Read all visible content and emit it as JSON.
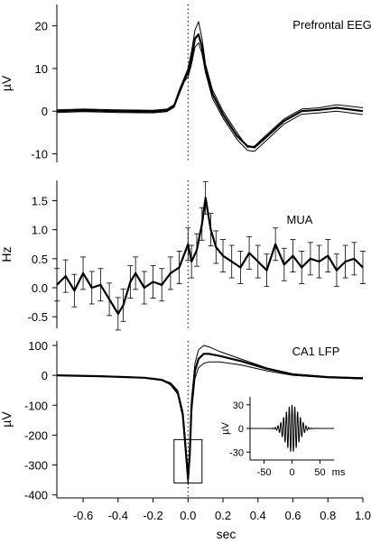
{
  "colors": {
    "line": "#000000",
    "background": "#ffffff"
  },
  "chart_data": [
    {
      "type": "line",
      "title": "Prefrontal EEG",
      "ylabel": "µV",
      "xlim": [
        -0.75,
        1.0
      ],
      "ylim": [
        -12,
        25
      ],
      "yticks": [
        "20",
        "10",
        "0",
        "-10"
      ],
      "ytick_values": [
        20,
        10,
        0,
        -10
      ],
      "grid": false,
      "reference_line_x": 0,
      "series": [
        {
          "name": "",
          "role": "upper",
          "x": [
            -0.75,
            -0.6,
            -0.4,
            -0.2,
            -0.12,
            -0.08,
            -0.05,
            -0.02,
            0.0,
            0.02,
            0.04,
            0.06,
            0.08,
            0.1,
            0.14,
            0.2,
            0.28,
            0.34,
            0.38,
            0.45,
            0.55,
            0.65,
            0.75,
            0.85,
            1.0
          ],
          "y": [
            0.3,
            0.5,
            0.3,
            0.2,
            0.5,
            1.5,
            5,
            8,
            10,
            14,
            19,
            21,
            17,
            11,
            5,
            0,
            -5,
            -8.5,
            -8.2,
            -5.5,
            -1.8,
            0.5,
            0.8,
            1.5,
            0.8
          ]
        },
        {
          "name": "",
          "role": "mean",
          "x": [
            -0.75,
            -0.6,
            -0.4,
            -0.2,
            -0.12,
            -0.08,
            -0.05,
            -0.02,
            0.0,
            0.02,
            0.04,
            0.06,
            0.08,
            0.1,
            0.14,
            0.2,
            0.28,
            0.34,
            0.38,
            0.45,
            0.55,
            0.65,
            0.75,
            0.85,
            1.0
          ],
          "y": [
            0,
            0.2,
            0,
            -0.1,
            0.2,
            1.2,
            4.5,
            7.5,
            9,
            12.5,
            17,
            18,
            15,
            10,
            4,
            -0.8,
            -5.8,
            -8.2,
            -8.5,
            -6,
            -2.3,
            0,
            0.3,
            0.8,
            0
          ]
        },
        {
          "name": "",
          "role": "lower",
          "x": [
            -0.75,
            -0.6,
            -0.4,
            -0.2,
            -0.12,
            -0.08,
            -0.05,
            -0.02,
            0.0,
            0.02,
            0.04,
            0.06,
            0.08,
            0.1,
            0.14,
            0.2,
            0.28,
            0.34,
            0.38,
            0.45,
            0.55,
            0.65,
            0.75,
            0.85,
            1.0
          ],
          "y": [
            -0.3,
            -0.1,
            -0.3,
            -0.4,
            -0.1,
            0.9,
            4,
            7,
            8,
            11,
            15,
            16,
            13.5,
            9,
            3,
            -1.6,
            -6.6,
            -9.2,
            -9.4,
            -6.8,
            -3,
            -0.7,
            -0.4,
            0,
            -0.8
          ]
        }
      ]
    },
    {
      "type": "line",
      "title": "MUA",
      "ylabel": "Hz",
      "xlim": [
        -0.75,
        1.0
      ],
      "ylim": [
        -0.7,
        1.85
      ],
      "yticks": [
        "1.5",
        "1.0",
        "0.5",
        "0.0",
        "-0.5"
      ],
      "ytick_values": [
        1.5,
        1.0,
        0.5,
        0.0,
        -0.5
      ],
      "grid": false,
      "reference_line_x": 0,
      "error_bar_halfwidth": 0.28,
      "series": [
        {
          "name": "",
          "role": "mean",
          "x": [
            -0.75,
            -0.7,
            -0.65,
            -0.6,
            -0.55,
            -0.5,
            -0.45,
            -0.4,
            -0.37,
            -0.33,
            -0.3,
            -0.25,
            -0.2,
            -0.15,
            -0.1,
            -0.05,
            0.0,
            0.02,
            0.05,
            0.08,
            0.1,
            0.13,
            0.16,
            0.2,
            0.25,
            0.3,
            0.35,
            0.4,
            0.45,
            0.5,
            0.55,
            0.6,
            0.65,
            0.7,
            0.75,
            0.8,
            0.85,
            0.9,
            0.95,
            1.0
          ],
          "y": [
            0.05,
            0.2,
            -0.05,
            0.25,
            0.0,
            0.05,
            -0.2,
            -0.45,
            -0.3,
            0.1,
            0.25,
            0.0,
            0.1,
            0.05,
            0.25,
            0.35,
            0.75,
            0.45,
            0.65,
            1.1,
            1.55,
            1.0,
            0.7,
            0.55,
            0.45,
            0.35,
            0.6,
            0.45,
            0.3,
            0.75,
            0.4,
            0.55,
            0.35,
            0.5,
            0.45,
            0.55,
            0.3,
            0.45,
            0.5,
            0.35
          ]
        }
      ]
    },
    {
      "type": "line",
      "title": "CA1 LFP",
      "ylabel": "µV",
      "xlabel": "sec",
      "xlim": [
        -0.75,
        1.0
      ],
      "ylim": [
        -410,
        115
      ],
      "yticks": [
        "100",
        "0",
        "-100",
        "-200",
        "-300",
        "-400"
      ],
      "ytick_values": [
        100,
        0,
        -100,
        -200,
        -300,
        -400
      ],
      "xticks": [
        "-0.6",
        "-0.4",
        "-0.2",
        "0.0",
        "0.2",
        "0.4",
        "0.6",
        "0.8",
        "1.0"
      ],
      "xtick_values": [
        -0.6,
        -0.4,
        -0.2,
        0.0,
        0.2,
        0.4,
        0.6,
        0.8,
        1.0
      ],
      "grid": false,
      "reference_line_x": 0,
      "highlight_box": {
        "x": [
          -0.08,
          0.08
        ],
        "y": [
          -360,
          -215
        ]
      },
      "series": [
        {
          "name": "",
          "role": "upper",
          "x": [
            -0.75,
            -0.5,
            -0.25,
            -0.15,
            -0.1,
            -0.06,
            -0.03,
            -0.01,
            0.0,
            0.01,
            0.02,
            0.04,
            0.06,
            0.09,
            0.12,
            0.18,
            0.3,
            0.45,
            0.6,
            0.8,
            1.0
          ],
          "y": [
            0,
            -3,
            -8,
            -15,
            -25,
            -50,
            -120,
            -250,
            -330,
            -250,
            -80,
            40,
            85,
            100,
            95,
            80,
            55,
            25,
            5,
            -5,
            -8
          ]
        },
        {
          "name": "",
          "role": "mean",
          "x": [
            -0.75,
            -0.5,
            -0.25,
            -0.15,
            -0.1,
            -0.06,
            -0.03,
            -0.01,
            0.0,
            0.01,
            0.02,
            0.04,
            0.06,
            0.09,
            0.12,
            0.18,
            0.3,
            0.45,
            0.6,
            0.8,
            1.0
          ],
          "y": [
            0,
            -3,
            -8,
            -15,
            -28,
            -55,
            -130,
            -270,
            -345,
            -265,
            -100,
            15,
            55,
            72,
            72,
            65,
            48,
            22,
            3,
            -6,
            -10
          ]
        },
        {
          "name": "",
          "role": "lower",
          "x": [
            -0.75,
            -0.5,
            -0.25,
            -0.15,
            -0.1,
            -0.06,
            -0.03,
            -0.01,
            0.0,
            0.01,
            0.02,
            0.04,
            0.06,
            0.09,
            0.12,
            0.18,
            0.3,
            0.45,
            0.6,
            0.8,
            1.0
          ],
          "y": [
            0,
            -3,
            -9,
            -17,
            -32,
            -62,
            -140,
            -290,
            -365,
            -285,
            -125,
            -10,
            25,
            40,
            45,
            45,
            35,
            15,
            0,
            -8,
            -12
          ]
        }
      ]
    },
    {
      "type": "line",
      "role": "inset",
      "ylabel": "µV",
      "xlabel": "ms",
      "xlim": [
        -75,
        75
      ],
      "ylim": [
        -40,
        40
      ],
      "yticks": [
        "30",
        "0",
        "-30"
      ],
      "ytick_values": [
        30,
        0,
        -30
      ],
      "xticks": [
        "-50",
        "0",
        "50"
      ],
      "xtick_values": [
        -50,
        0,
        50
      ],
      "grid": false,
      "ripple": {
        "amplitude": 30,
        "frequency_hz": 200,
        "envelope_sigma_ms": 12
      }
    }
  ]
}
